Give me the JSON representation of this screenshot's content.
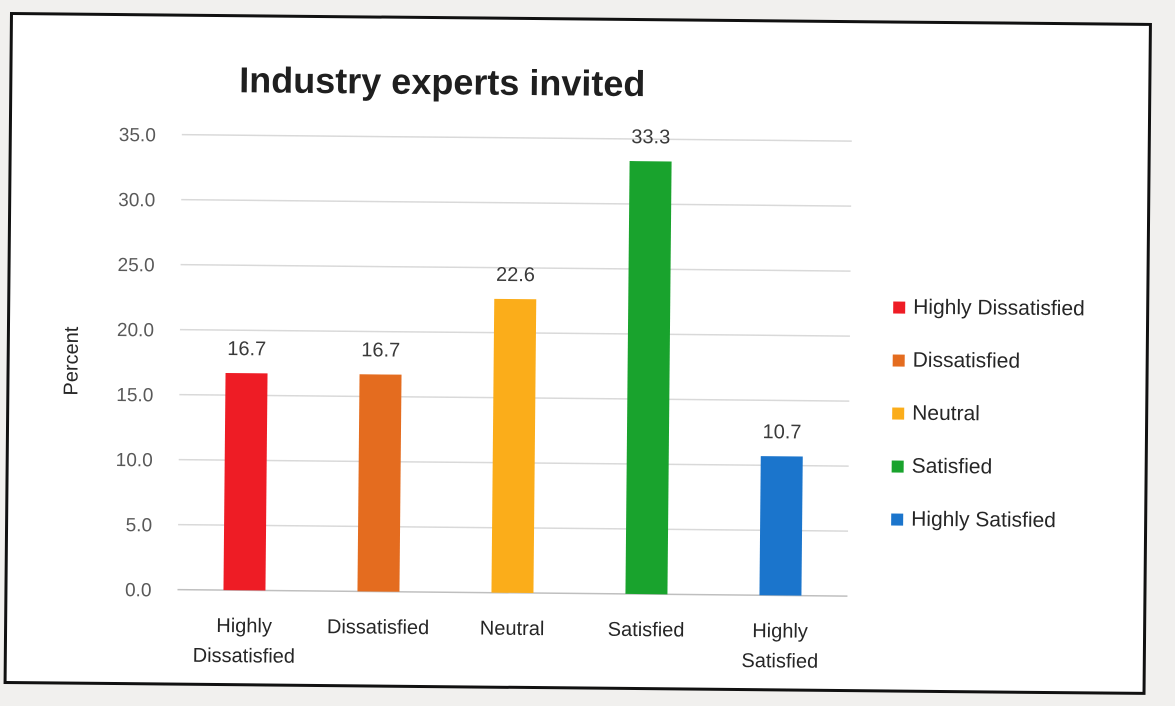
{
  "chart_data": {
    "type": "bar",
    "title": "Industry experts invited",
    "ylabel": "Percent",
    "xlabel": "",
    "ylim": [
      0,
      35
    ],
    "yticks": [
      "0.0",
      "5.0",
      "10.0",
      "15.0",
      "20.0",
      "25.0",
      "30.0",
      "35.0"
    ],
    "categories": [
      "Highly Dissatisfied",
      "Dissatisfied",
      "Neutral",
      "Satisfied",
      "Highly Satisfied"
    ],
    "category_lines": [
      [
        "Highly",
        "Dissatisfied"
      ],
      [
        "Dissatisfied"
      ],
      [
        "Neutral"
      ],
      [
        "Satisfied"
      ],
      [
        "Highly",
        "Satisfied"
      ]
    ],
    "values": [
      16.7,
      16.7,
      22.6,
      33.3,
      10.7
    ],
    "data_labels": [
      "16.7",
      "16.7",
      "22.6",
      "33.3",
      "10.7"
    ],
    "colors": [
      "#ee1c25",
      "#e46c1f",
      "#fbad1a",
      "#19a32d",
      "#1b75cc"
    ],
    "legend": {
      "position": "right",
      "entries": [
        "Highly Dissatisfied",
        "Dissatisfied",
        "Neutral",
        "Satisfied",
        "Highly Satisfied"
      ]
    },
    "grid": true
  }
}
